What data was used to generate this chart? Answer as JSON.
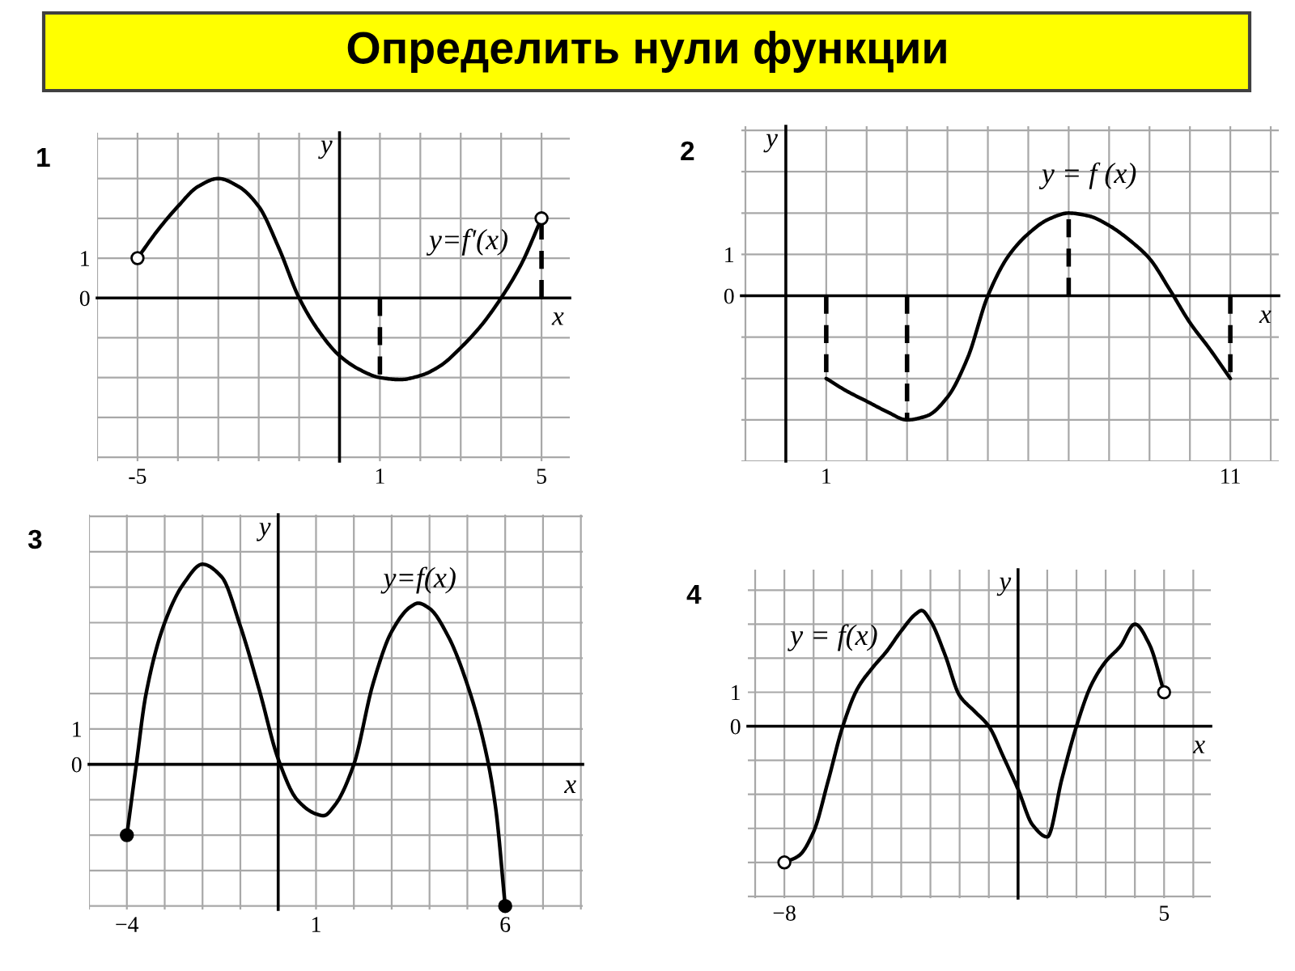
{
  "chart_data": [
    {
      "type": "line",
      "title": "1",
      "xlabel": "x",
      "ylabel": "y",
      "grid": true,
      "xlim": [
        -6,
        5.7
      ],
      "ylim": [
        -4.1,
        4.15
      ],
      "xticks": [
        {
          "value": -6,
          "label": null
        },
        -5,
        {
          "value": -4,
          "label": null
        },
        {
          "value": -3,
          "label": null
        },
        {
          "value": -2,
          "label": null
        },
        {
          "value": -1,
          "label": null
        },
        {
          "value": 0,
          "label": null
        },
        1,
        {
          "value": 2,
          "label": null
        },
        {
          "value": 3,
          "label": null
        },
        {
          "value": 4,
          "label": null
        },
        5
      ],
      "yticks": [
        {
          "value": -4,
          "label": null
        },
        {
          "value": -3,
          "label": null
        },
        {
          "value": -2,
          "label": null
        },
        {
          "value": -1,
          "label": null
        },
        0,
        1,
        {
          "value": 2,
          "label": null
        },
        {
          "value": 3,
          "label": null
        },
        {
          "value": 4,
          "label": null
        }
      ],
      "series": [
        {
          "name": "y=f'(x)",
          "color": "#000000",
          "x": [
            -5,
            -4.5,
            -4,
            -3.5,
            -3,
            -2.5,
            -2,
            -1.5,
            -1,
            -0.5,
            0,
            0.5,
            1,
            1.5,
            2,
            2.5,
            3,
            3.5,
            4,
            4.5,
            5
          ],
          "values": [
            1,
            1.7,
            2.3,
            2.8,
            3,
            2.8,
            2.3,
            1.25,
            0,
            -0.85,
            -1.45,
            -1.8,
            -2,
            -2.05,
            -1.95,
            -1.7,
            -1.25,
            -0.7,
            0,
            0.85,
            2
          ]
        },
        {
          "line_style": "dashed",
          "color": "#000000",
          "x": [
            1,
            1
          ],
          "values": [
            0,
            -2
          ]
        },
        {
          "line_style": "dashed",
          "color": "#000000",
          "x": [
            5,
            5
          ],
          "values": [
            0,
            2
          ]
        },
        {
          "type": "scatter",
          "marker": "circle",
          "color": "#ffffff",
          "x": [
            -5,
            5
          ],
          "values": [
            1,
            2
          ]
        }
      ],
      "annotations": [
        "Определить нули функции"
      ]
    },
    {
      "type": "line",
      "title": "2",
      "xlabel": "x",
      "ylabel": "y",
      "grid": true,
      "xlim": [
        -1.1,
        12.2
      ],
      "ylim": [
        -4,
        4.1
      ],
      "xticks": [
        {
          "value": -1,
          "label": null
        },
        {
          "value": 0,
          "label": null
        },
        1,
        {
          "value": 2,
          "label": null
        },
        {
          "value": 3,
          "label": null
        },
        {
          "value": 4,
          "label": null
        },
        {
          "value": 5,
          "label": null
        },
        {
          "value": 6,
          "label": null
        },
        {
          "value": 7,
          "label": null
        },
        {
          "value": 8,
          "label": null
        },
        {
          "value": 9,
          "label": null
        },
        {
          "value": 10,
          "label": null
        },
        11,
        {
          "value": 12,
          "label": null
        }
      ],
      "yticks": [
        {
          "value": -4,
          "label": null
        },
        {
          "value": -3,
          "label": null
        },
        {
          "value": -2,
          "label": null
        },
        {
          "value": -1,
          "label": null
        },
        0,
        1,
        {
          "value": 2,
          "label": null
        },
        {
          "value": 3,
          "label": null
        },
        {
          "value": 4,
          "label": null
        }
      ],
      "series": [
        {
          "name": "y = f (x)",
          "color": "#000000",
          "x": [
            1,
            1.5,
            2,
            2.5,
            3,
            3.5,
            4,
            4.5,
            5,
            5.5,
            6,
            6.5,
            7,
            7.5,
            8,
            8.5,
            9,
            9.5,
            10,
            10.5,
            11
          ],
          "values": [
            -2,
            -2.3,
            -2.55,
            -2.8,
            -3,
            -2.9,
            -2.45,
            -1.5,
            0,
            0.95,
            1.5,
            1.85,
            2,
            1.93,
            1.7,
            1.35,
            0.9,
            0.15,
            -0.65,
            -1.3,
            -2
          ]
        },
        {
          "line_style": "dashed",
          "color": "#000000",
          "x": [
            1,
            1
          ],
          "values": [
            0,
            -2
          ]
        },
        {
          "line_style": "dashed",
          "color": "#000000",
          "x": [
            3,
            3
          ],
          "values": [
            0,
            -3
          ]
        },
        {
          "line_style": "dashed",
          "color": "#000000",
          "x": [
            7,
            7
          ],
          "values": [
            0,
            2
          ]
        },
        {
          "line_style": "dashed",
          "color": "#000000",
          "x": [
            11,
            11
          ],
          "values": [
            0,
            -2
          ]
        }
      ]
    },
    {
      "type": "line",
      "title": "3",
      "xlabel": "x",
      "ylabel": "y",
      "grid": true,
      "xlim": [
        -5,
        8.05
      ],
      "ylim": [
        -4.1,
        7.05
      ],
      "xticks": [
        {
          "value": -5,
          "label": null
        },
        {
          "value": -4,
          "label": "−4"
        },
        {
          "value": -3,
          "label": null
        },
        {
          "value": -2,
          "label": null
        },
        {
          "value": -1,
          "label": null
        },
        {
          "value": 0,
          "label": null
        },
        1,
        {
          "value": 2,
          "label": null
        },
        {
          "value": 3,
          "label": null
        },
        {
          "value": 4,
          "label": null
        },
        {
          "value": 5,
          "label": null
        },
        6,
        {
          "value": 7,
          "label": null
        },
        {
          "value": 8,
          "label": null
        }
      ],
      "yticks": [
        {
          "value": -4,
          "label": null
        },
        {
          "value": -3,
          "label": null
        },
        {
          "value": -2,
          "label": null
        },
        {
          "value": -1,
          "label": null
        },
        0,
        1,
        {
          "value": 2,
          "label": null
        },
        {
          "value": 3,
          "label": null
        },
        {
          "value": 4,
          "label": null
        },
        {
          "value": 5,
          "label": null
        },
        {
          "value": 6,
          "label": null
        },
        {
          "value": 7,
          "label": null
        }
      ],
      "series": [
        {
          "name": "y=f(x)",
          "color": "#000000",
          "x": [
            -4,
            -3.75,
            -3.5,
            -3,
            -2.5,
            -2,
            -1.5,
            -1,
            -0.5,
            0,
            0.5,
            1,
            1.2,
            1.5,
            2,
            2.5,
            3,
            3.5,
            3.7,
            4,
            4.5,
            5,
            5.5,
            5.75,
            6
          ],
          "values": [
            -2,
            0,
            1.95,
            4,
            5.1,
            5.65,
            5.3,
            3.9,
            2.1,
            0.15,
            -1,
            -1.4,
            -1.45,
            -1.15,
            0,
            2.25,
            3.75,
            4.45,
            4.55,
            4.4,
            3.6,
            2.25,
            0.3,
            -1.25,
            -4
          ]
        },
        {
          "type": "scatter",
          "marker": "circle",
          "color": "#000000",
          "x": [
            -4,
            6
          ],
          "values": [
            -2,
            -4
          ]
        }
      ]
    },
    {
      "type": "line",
      "title": "4",
      "xlabel": "x",
      "ylabel": "y",
      "grid": true,
      "xlim": [
        -9.25,
        6.6
      ],
      "ylim": [
        -5.05,
        4.6
      ],
      "xticks": [
        {
          "value": -9,
          "label": null
        },
        {
          "value": -8,
          "label": "−8"
        },
        {
          "value": -7,
          "label": null
        },
        {
          "value": -6,
          "label": null
        },
        {
          "value": -5,
          "label": null
        },
        {
          "value": -4,
          "label": null
        },
        {
          "value": -3,
          "label": null
        },
        {
          "value": -2,
          "label": null
        },
        {
          "value": -1,
          "label": null
        },
        {
          "value": 0,
          "label": null
        },
        {
          "value": 1,
          "label": null
        },
        {
          "value": 2,
          "label": null
        },
        {
          "value": 3,
          "label": null
        },
        {
          "value": 4,
          "label": null
        },
        5,
        {
          "value": 6,
          "label": null
        }
      ],
      "yticks": [
        {
          "value": -5,
          "label": null
        },
        {
          "value": -4,
          "label": null
        },
        {
          "value": -3,
          "label": null
        },
        {
          "value": -2,
          "label": null
        },
        {
          "value": -1,
          "label": null
        },
        0,
        1,
        {
          "value": 2,
          "label": null
        },
        {
          "value": 3,
          "label": null
        },
        {
          "value": 4,
          "label": null
        }
      ],
      "series": [
        {
          "name": "y = f(x)",
          "color": "#000000",
          "x": [
            -8,
            -7.5,
            -7,
            -6.5,
            -6,
            -5.5,
            -5,
            -4.5,
            -4,
            -3.5,
            -3.3,
            -3,
            -2.5,
            -2,
            -1.5,
            -1,
            -0.5,
            0,
            0.5,
            1,
            1.5,
            2,
            2.5,
            3,
            3.5,
            4,
            4.5,
            5
          ],
          "values": [
            -4,
            -3.8,
            -3.1,
            -1.6,
            0,
            1.1,
            1.7,
            2.2,
            2.8,
            3.3,
            3.4,
            3.1,
            2.1,
            0.9,
            0.45,
            0,
            -0.9,
            -1.85,
            -2.9,
            -3.25,
            -1.55,
            0,
            1.2,
            1.9,
            2.35,
            3,
            2.4,
            1
          ]
        },
        {
          "type": "scatter",
          "marker": "circle",
          "color": "#ffffff",
          "x": [
            -8,
            5
          ],
          "values": [
            -4,
            1
          ]
        }
      ]
    }
  ]
}
